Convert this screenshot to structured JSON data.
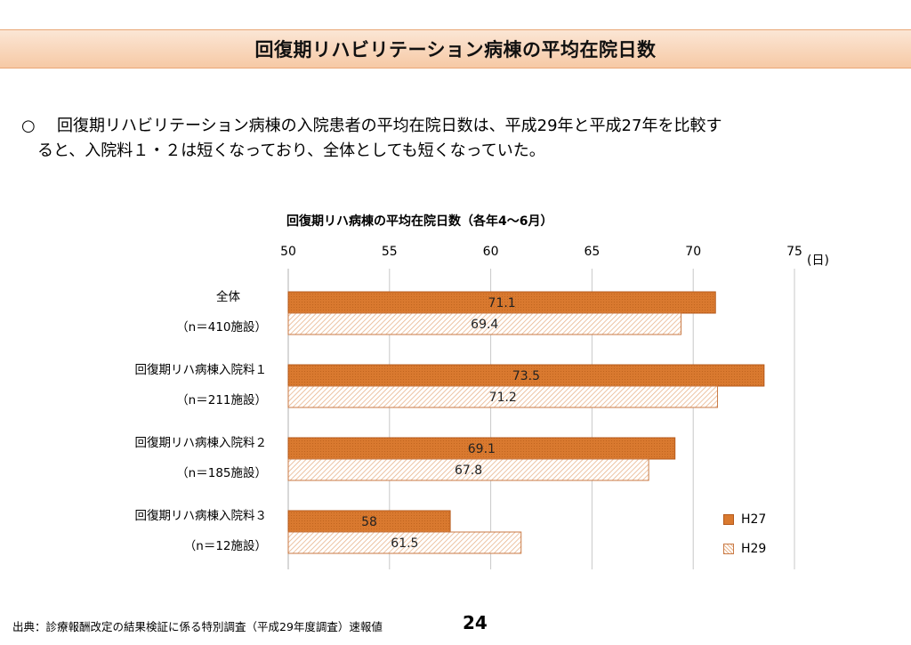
{
  "page": {
    "title": "回復期リハビリテーション病棟の平均在院日数",
    "summary_bullet": "○",
    "summary_line1": "回復期リハビリテーション病棟の入院患者の平均在院日数は、平成29年と平成27年を比較す",
    "summary_line2": "ると、入院料１・２は短くなっており、全体としても短くなっていた。",
    "source": "出典：診療報酬改定の結果検証に係る特別調査（平成29年度調査）速報値",
    "page_number": "24"
  },
  "colors": {
    "h27": "#d9792f",
    "h29_hatch": "#e8b48c"
  },
  "chart_data": {
    "type": "bar",
    "orientation": "horizontal",
    "title": "回復期リハ病棟の平均在院日数（各年4～6月）",
    "unit": "(日)",
    "xlim": [
      50,
      75
    ],
    "ticks": [
      "50",
      "55",
      "60",
      "65",
      "70",
      "75"
    ],
    "grid": true,
    "legend_position": "bottom-right",
    "categories": [
      {
        "name": "全体",
        "n": "（n＝410施設）"
      },
      {
        "name": "回復期リハ病棟入院料１",
        "n": "（n＝211施設）"
      },
      {
        "name": "回復期リハ病棟入院料２",
        "n": "（n＝185施設）"
      },
      {
        "name": "回復期リハ病棟入院料３",
        "n": "（n＝12施設）"
      }
    ],
    "series": [
      {
        "name": "H27",
        "values": [
          71.1,
          73.5,
          69.1,
          58
        ],
        "labels": [
          "71.1",
          "73.5",
          "69.1",
          "58"
        ]
      },
      {
        "name": "H29",
        "values": [
          69.4,
          71.2,
          67.8,
          61.5
        ],
        "labels": [
          "69.4",
          "71.2",
          "67.8",
          "61.5"
        ]
      }
    ]
  }
}
